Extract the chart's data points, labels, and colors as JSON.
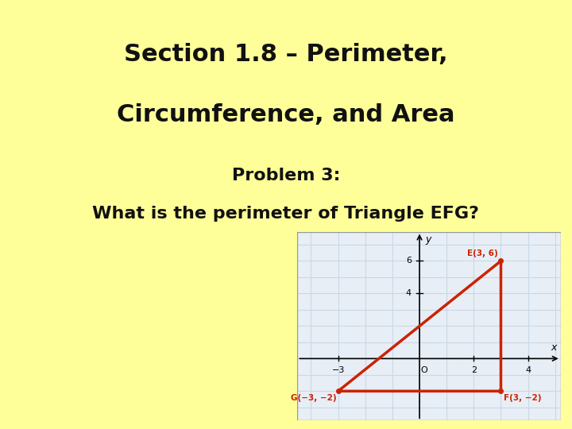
{
  "bg_color": "#FFFF99",
  "title_line1": "Section 1.8 – Perimeter,",
  "title_line2": "Circumference, and Area",
  "subtitle": "Problem 3:",
  "question": "What is the perimeter of Triangle EFG?",
  "title_fontsize": 22,
  "subtitle_fontsize": 16,
  "question_fontsize": 16,
  "triangle_vertices": {
    "E": [
      3,
      6
    ],
    "F": [
      3,
      -2
    ],
    "G": [
      -3,
      -2
    ]
  },
  "triangle_color": "#CC2200",
  "graph_xlim": [
    -4.5,
    5.2
  ],
  "graph_ylim": [
    -3.8,
    7.8
  ],
  "grid_color": "#c8d8e8",
  "label_color": "#CC2200",
  "graph_bg": "#e8eef5"
}
